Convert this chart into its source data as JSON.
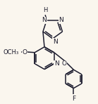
{
  "bg_color": "#faf6ee",
  "line_color": "#1c1c2e",
  "bond_lw": 1.1,
  "font_size": 6.5,
  "xlim": [
    0.0,
    1.0
  ],
  "ylim": [
    0.0,
    1.0
  ]
}
